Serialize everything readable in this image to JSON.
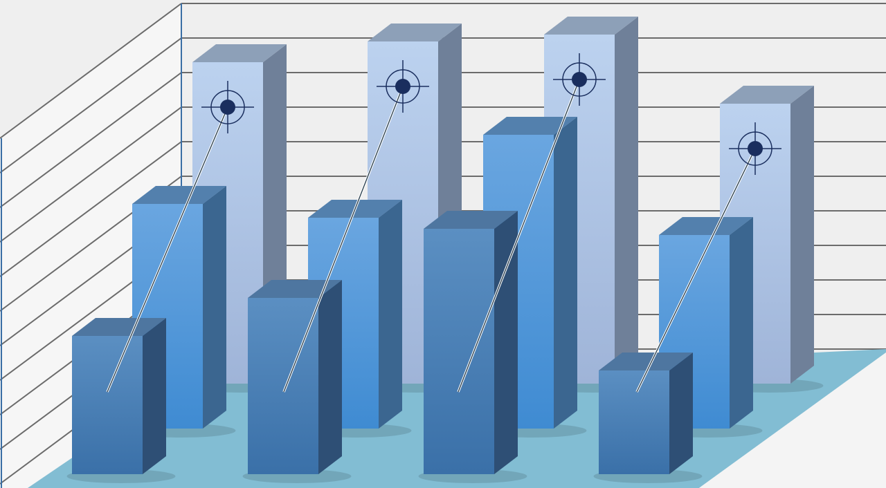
{
  "chart_data": {
    "type": "bar",
    "style": "3d-clustered",
    "title": "",
    "xlabel": "",
    "ylabel": "",
    "grid": true,
    "ylim": [
      0,
      11
    ],
    "categories": [
      "",
      "",
      "",
      ""
    ],
    "series": [
      {
        "row": "back",
        "values": [
          9.3,
          9.9,
          10.1,
          8.1
        ],
        "color": "#b3cbea",
        "marker": "target-icon"
      },
      {
        "row": "middle",
        "values": [
          6.5,
          6.1,
          8.5,
          5.6
        ],
        "color": "#5b9fdc"
      },
      {
        "row": "front",
        "values": [
          4.0,
          5.1,
          7.1,
          3.0
        ],
        "color": "#4a80b6"
      }
    ],
    "colors": {
      "wall": "#efefef",
      "grid": "#6b6b6b",
      "floor": "#82bdd3",
      "axis": "#3a6ea5",
      "target": "#1a2e5e"
    }
  }
}
